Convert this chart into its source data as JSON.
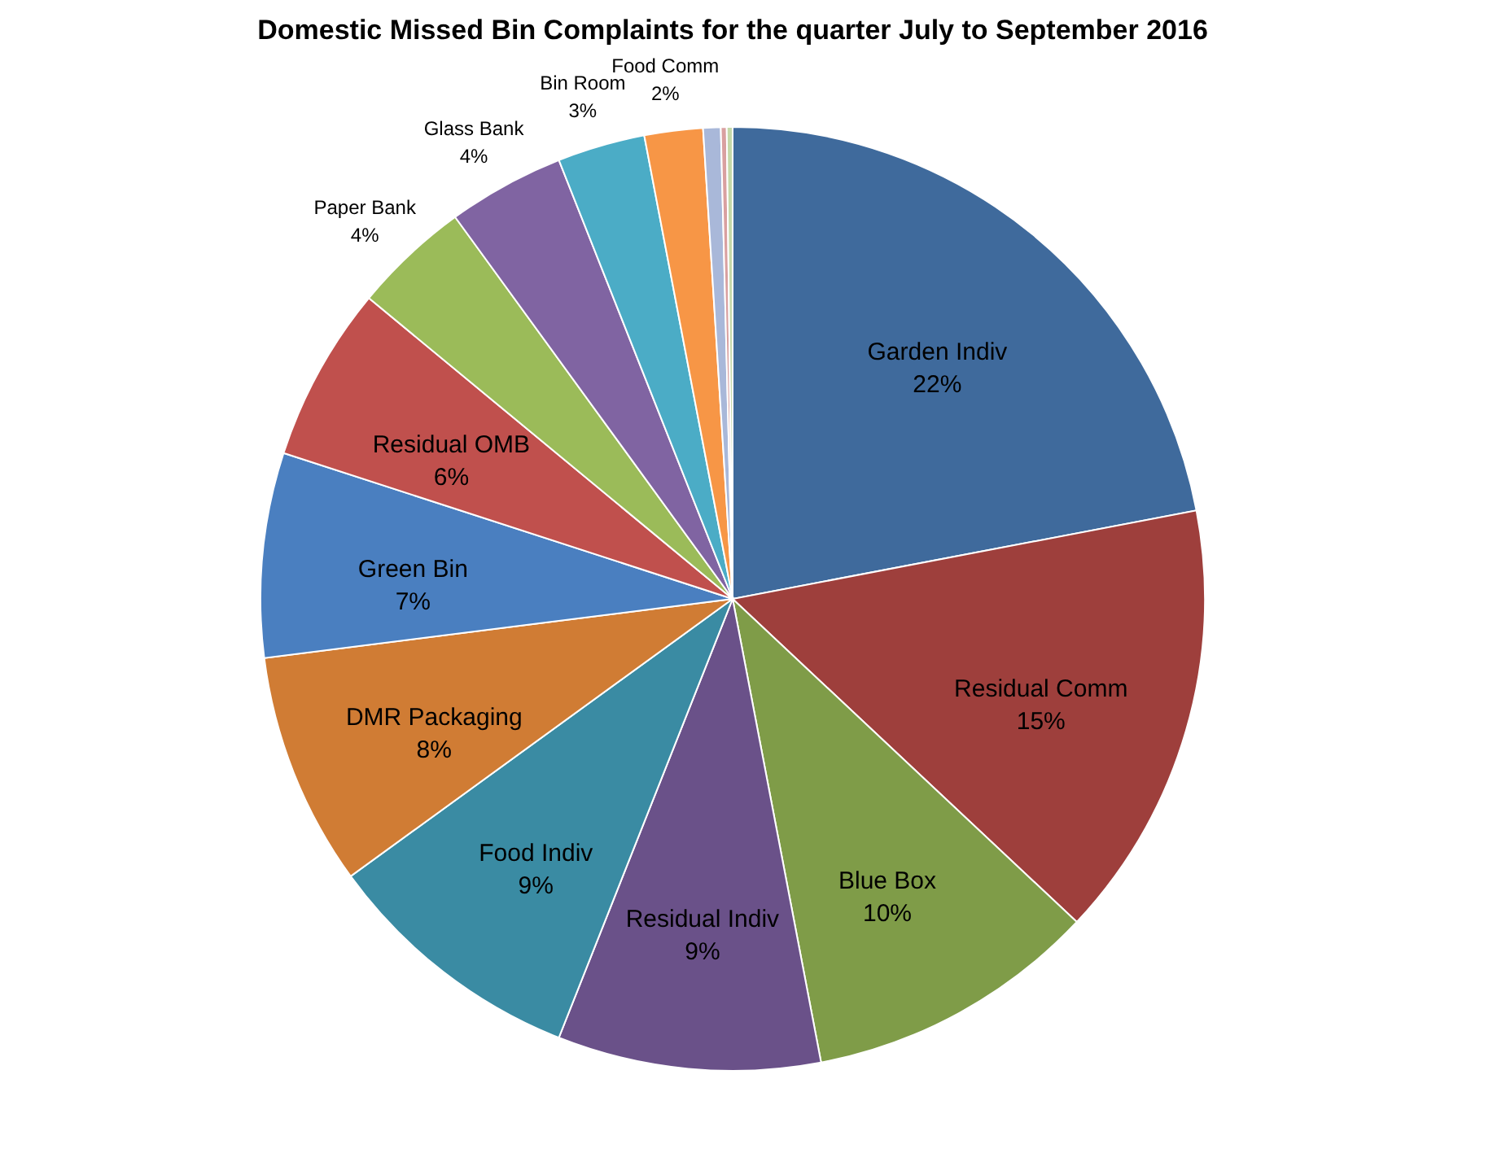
{
  "chart_data": {
    "type": "pie",
    "title": "Domestic Missed Bin Complaints for the quarter July to September 2016",
    "categories": [
      "Garden Indiv",
      "Residual Comm",
      "Blue Box",
      "Residual Indiv",
      "Food Indiv",
      "DMR Packaging",
      "Green Bin",
      "Residual OMB",
      "Paper Bank",
      "Glass Bank",
      "Bin Room",
      "Food Comm",
      null,
      null,
      null
    ],
    "values": [
      22,
      15,
      10,
      9,
      9,
      8,
      7,
      6,
      4,
      4,
      3,
      2,
      0.6,
      0.2,
      0.2
    ],
    "value_labels": [
      "22%",
      "15%",
      "10%",
      "9%",
      "9%",
      "8%",
      "7%",
      "6%",
      "4%",
      "4%",
      "3%",
      "2%",
      null,
      null,
      null
    ],
    "colors": [
      "#3f6a9c",
      "#9e3f3c",
      "#7f9c48",
      "#6a5189",
      "#3a8ba3",
      "#d07c34",
      "#4a7fc0",
      "#c0504d",
      "#9bbb59",
      "#8064a2",
      "#4bacc6",
      "#f79646",
      "#a9b8d9",
      "#d9a0a0",
      "#c5d8a8"
    ]
  }
}
